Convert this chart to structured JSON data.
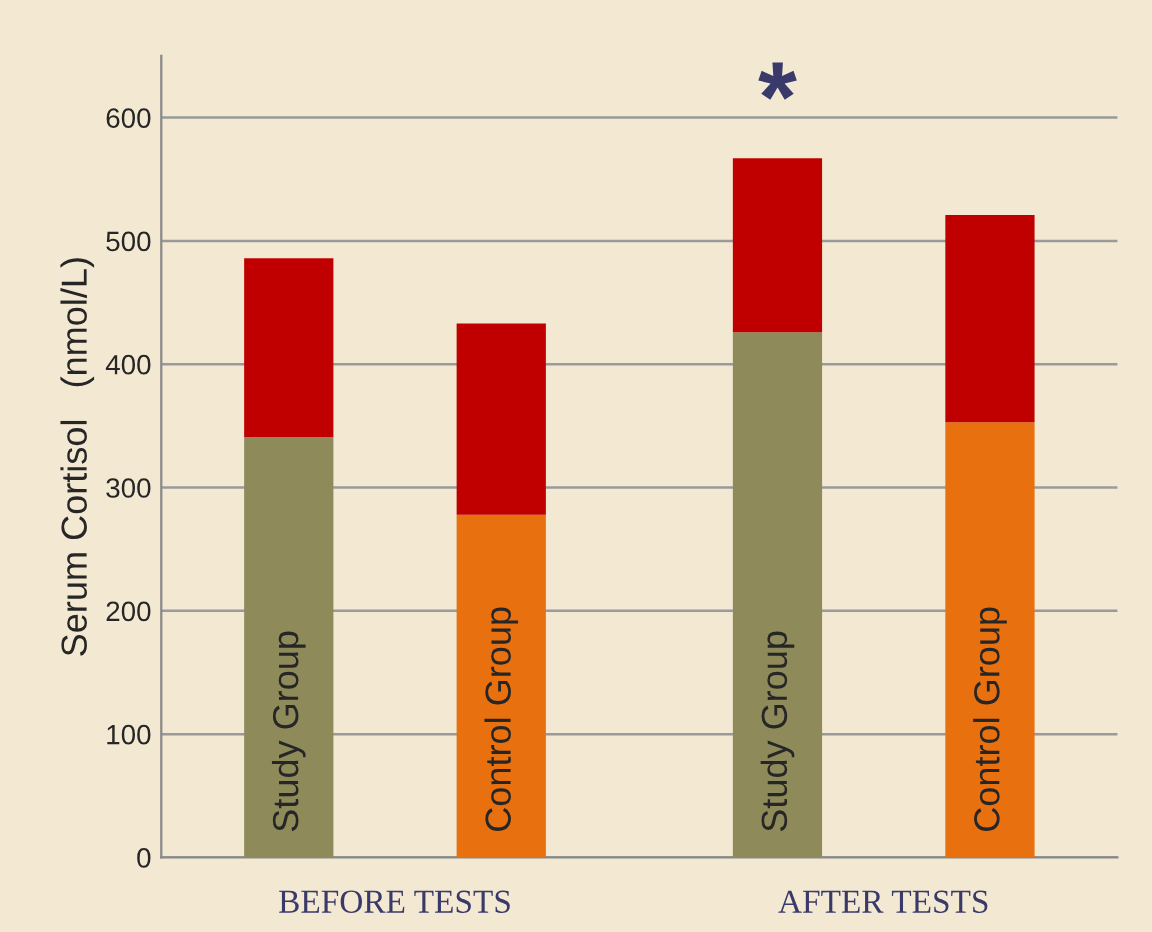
{
  "chart_data": {
    "type": "bar",
    "ylabel": "Serum Cortisol   (nmol/L)",
    "categories": [
      "Study Group",
      "Control Group",
      "Study Group",
      "Control Group"
    ],
    "stacked": true,
    "series": [
      {
        "colors": [
          "#8e8a5a",
          "#e8700f",
          "#8e8a5a",
          "#e8700f"
        ],
        "values": [
          341,
          278,
          426,
          353
        ]
      },
      {
        "color": "#c00000",
        "values": [
          145,
          155,
          141,
          168
        ]
      }
    ],
    "ylim": [
      0,
      650
    ],
    "yticks": [
      0,
      100,
      200,
      300,
      400,
      500,
      600
    ],
    "grid": "y",
    "annotations": [
      "BEFORE TESTS",
      "AFTER TESTS",
      "*"
    ]
  }
}
